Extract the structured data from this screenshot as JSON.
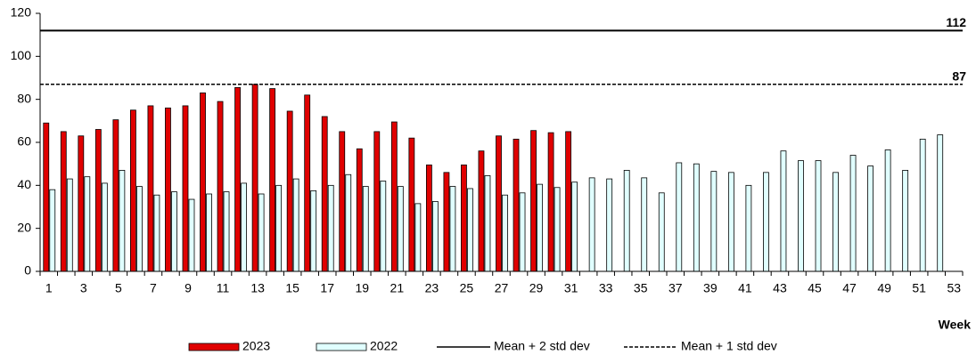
{
  "chart_data": {
    "type": "bar",
    "xlabel": "Week",
    "categories": [
      "1",
      null,
      "3",
      null,
      "5",
      null,
      "7",
      null,
      "9",
      null,
      "11",
      null,
      "13",
      null,
      "15",
      null,
      "17",
      null,
      "19",
      null,
      "21",
      null,
      "23",
      null,
      "25",
      null,
      "27",
      null,
      "29",
      null,
      "31",
      null,
      "33",
      null,
      "35",
      null,
      "37",
      null,
      "39",
      null,
      "41",
      null,
      "43",
      null,
      "45",
      null,
      "47",
      null,
      "49",
      null,
      "51",
      null,
      "53"
    ],
    "series": [
      {
        "name": "2023",
        "color": "#e00000",
        "values": [
          69,
          65,
          63,
          66,
          70.5,
          75,
          77,
          76,
          77,
          83,
          79,
          85.5,
          87,
          85,
          74.5,
          82,
          72,
          65,
          57,
          65,
          69.5,
          62,
          49.5,
          46,
          49.5,
          56,
          63,
          61.5,
          65.5,
          64.5,
          65,
          null,
          null,
          null,
          null,
          null,
          null,
          null,
          null,
          null,
          null,
          null,
          null,
          null,
          null,
          null,
          null,
          null,
          null,
          null,
          null,
          null,
          null
        ]
      },
      {
        "name": "2022",
        "color": "#e0ffff",
        "values": [
          38,
          43,
          44,
          41,
          47,
          39.5,
          35.5,
          37,
          33.5,
          36,
          37,
          41,
          36,
          40,
          43,
          37.5,
          40,
          45,
          39.5,
          42,
          39.5,
          31.5,
          32.5,
          39.5,
          38.5,
          44.5,
          35.5,
          36.5,
          40.5,
          39,
          41.5,
          43.5,
          43,
          47,
          43.5,
          36.5,
          50.5,
          50,
          46.5,
          46,
          40,
          46,
          56,
          51.5,
          51.5,
          46,
          54,
          49,
          56.5,
          47,
          61.5,
          63.5,
          null
        ]
      }
    ],
    "reference_lines": [
      {
        "name": "Mean + 2 std dev",
        "value": 112,
        "style": "solid",
        "color": "#000000"
      },
      {
        "name": "Mean + 1 std dev",
        "value": 87,
        "style": "dashed",
        "color": "#000000"
      }
    ],
    "ylim": [
      0,
      120
    ],
    "yticks": [
      0,
      20,
      40,
      60,
      80,
      100,
      120
    ]
  }
}
